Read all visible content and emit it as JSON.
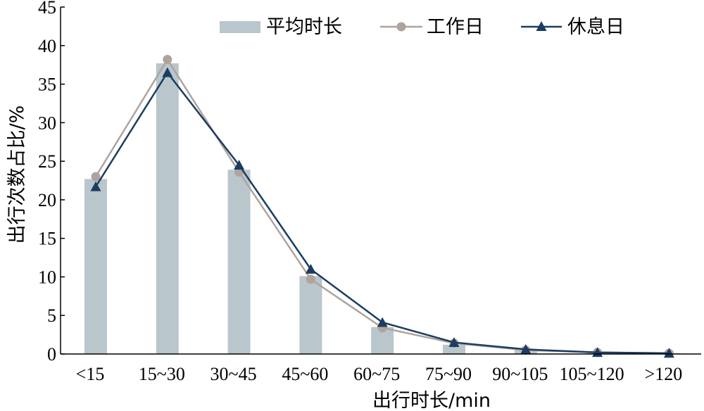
{
  "chart_data": {
    "type": "bar",
    "xlabel": "出行时长/min",
    "ylabel": "出行次数占比/%",
    "ylim": [
      0,
      45
    ],
    "yticks": [
      "0",
      "5",
      "10",
      "15",
      "20",
      "25",
      "30",
      "35",
      "40",
      "45"
    ],
    "categories": [
      "<15",
      "15~30",
      "30~45",
      "45~60",
      "60~75",
      "75~90",
      "90~105",
      "105~120",
      ">120"
    ],
    "grid": false,
    "legend_position": "top",
    "series": [
      {
        "name": "平均时长",
        "kind": "bar",
        "color": "#b9c6cb",
        "values": [
          22.7,
          37.7,
          23.9,
          10.1,
          3.5,
          1.2,
          0.5,
          0.2,
          0.1
        ]
      },
      {
        "name": "工作日",
        "kind": "line",
        "marker": "circle",
        "color": "#b0a39e",
        "values": [
          23.0,
          38.2,
          23.6,
          9.7,
          3.4,
          1.4,
          0.5,
          0.2,
          0.1
        ]
      },
      {
        "name": "休息日",
        "kind": "line",
        "marker": "triangle",
        "color": "#1b3d61",
        "values": [
          21.7,
          36.5,
          24.5,
          11.0,
          4.1,
          1.5,
          0.6,
          0.2,
          0.1
        ]
      }
    ]
  }
}
